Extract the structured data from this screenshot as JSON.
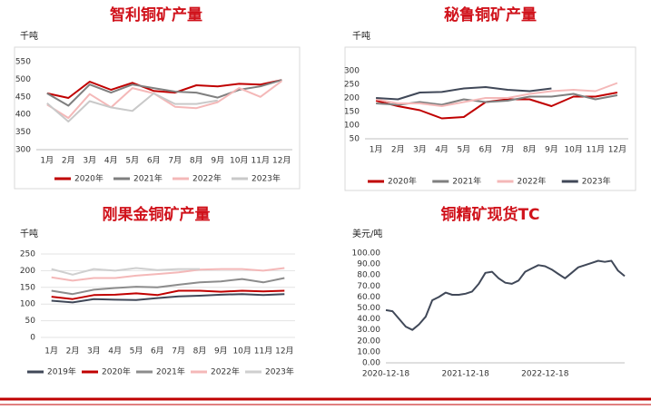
{
  "chart_data": [
    {
      "type": "line",
      "title": "智利铜矿产量",
      "ylabel": "千吨",
      "categories": [
        "1月",
        "2月",
        "3月",
        "4月",
        "5月",
        "6月",
        "7月",
        "8月",
        "9月",
        "10月",
        "11月",
        "12月"
      ],
      "ylim": [
        300,
        550
      ],
      "yticks": [
        300,
        350,
        400,
        450,
        500,
        550
      ],
      "grid": false,
      "series": [
        {
          "name": "2020年",
          "color": "#c00000",
          "values": [
            460,
            447,
            493,
            470,
            490,
            467,
            462,
            483,
            480,
            487,
            485,
            498
          ]
        },
        {
          "name": "2021年",
          "color": "#7f7f7f",
          "values": [
            460,
            425,
            485,
            462,
            485,
            475,
            465,
            462,
            448,
            470,
            480,
            498
          ]
        },
        {
          "name": "2022年",
          "color": "#f4b8b8",
          "values": [
            428,
            390,
            458,
            420,
            475,
            460,
            422,
            418,
            435,
            475,
            450,
            495
          ]
        },
        {
          "name": "2023年",
          "color": "#c9c9c9",
          "values": [
            432,
            380,
            438,
            420,
            410,
            460,
            430,
            430,
            440,
            null,
            null,
            null
          ]
        }
      ]
    },
    {
      "type": "line",
      "title": "秘鲁铜矿产量",
      "ylabel": "千吨",
      "categories": [
        "1月",
        "2月",
        "3月",
        "4月",
        "5月",
        "6月",
        "7月",
        "8月",
        "9月",
        "10月",
        "11月",
        "12月"
      ],
      "ylim": [
        50,
        300
      ],
      "yticks": [
        50,
        100,
        150,
        200,
        250,
        300
      ],
      "grid": false,
      "series": [
        {
          "name": "2020年",
          "color": "#c00000",
          "values": [
            190,
            170,
            155,
            125,
            130,
            185,
            195,
            195,
            170,
            205,
            205,
            220
          ]
        },
        {
          "name": "2021年",
          "color": "#7f7f7f",
          "values": [
            180,
            175,
            185,
            175,
            195,
            185,
            190,
            205,
            205,
            215,
            195,
            210
          ]
        },
        {
          "name": "2022年",
          "color": "#f4b8b8",
          "values": [
            195,
            180,
            180,
            170,
            185,
            200,
            200,
            215,
            225,
            230,
            225,
            255
          ]
        },
        {
          "name": "2023年",
          "color": "#404858",
          "values": [
            200,
            195,
            220,
            222,
            235,
            240,
            230,
            225,
            235,
            null,
            null,
            null
          ]
        }
      ]
    },
    {
      "type": "line",
      "title": "刚果金铜矿产量",
      "ylabel": "千吨",
      "categories": [
        "1月",
        "2月",
        "3月",
        "4月",
        "5月",
        "6月",
        "7月",
        "8月",
        "9月",
        "10月",
        "11月",
        "12月"
      ],
      "ylim": [
        0,
        250
      ],
      "yticks": [
        0,
        50,
        100,
        150,
        200,
        250
      ],
      "grid": true,
      "series": [
        {
          "name": "2019年",
          "color": "#404858",
          "values": [
            110,
            105,
            115,
            113,
            112,
            118,
            123,
            125,
            128,
            130,
            127,
            130
          ]
        },
        {
          "name": "2020年",
          "color": "#c00000",
          "values": [
            122,
            115,
            127,
            128,
            132,
            127,
            140,
            140,
            137,
            140,
            138,
            140
          ]
        },
        {
          "name": "2021年",
          "color": "#8c8c8c",
          "values": [
            140,
            130,
            143,
            148,
            152,
            150,
            158,
            165,
            168,
            175,
            165,
            178
          ]
        },
        {
          "name": "2022年",
          "color": "#f4b8b8",
          "values": [
            180,
            170,
            178,
            178,
            185,
            190,
            195,
            203,
            205,
            205,
            200,
            208
          ]
        },
        {
          "name": "2023年",
          "color": "#cfcfcf",
          "values": [
            205,
            188,
            205,
            200,
            208,
            202,
            205,
            205,
            null,
            null,
            null,
            null
          ]
        }
      ]
    },
    {
      "type": "line",
      "title": "铜精矿现货TC",
      "ylabel": "美元/吨",
      "categories": [
        "2020-12-18",
        null,
        null,
        null,
        null,
        null,
        null,
        null,
        null,
        null,
        null,
        null,
        "2021-12-18",
        null,
        null,
        null,
        null,
        null,
        null,
        null,
        null,
        null,
        null,
        null,
        "2022-12-18",
        null,
        null,
        null,
        null,
        null,
        null,
        null,
        null,
        null,
        null,
        null,
        null
      ],
      "ylim": [
        0,
        100
      ],
      "yticks": [
        {
          "value": 0,
          "label": "0.00"
        },
        {
          "value": 10,
          "label": "10.00"
        },
        {
          "value": 20,
          "label": "20.00"
        },
        {
          "value": 30,
          "label": "30.00"
        },
        {
          "value": 40,
          "label": "40.00"
        },
        {
          "value": 50,
          "label": "50.00"
        },
        {
          "value": 60,
          "label": "60.00"
        },
        {
          "value": 70,
          "label": "70.00"
        },
        {
          "value": 80,
          "label": "80.00"
        },
        {
          "value": 90,
          "label": "90.00"
        },
        {
          "value": 100,
          "label": "100.00"
        }
      ],
      "grid": false,
      "series": [
        {
          "color": "#404858",
          "values": [
            48,
            47,
            40,
            33,
            30,
            35,
            42,
            57,
            60,
            64,
            62,
            62,
            63,
            65,
            72,
            82,
            83,
            77,
            73,
            72,
            75,
            83,
            86,
            89,
            88,
            85,
            81,
            77,
            82,
            87,
            89,
            91,
            93,
            92,
            93,
            84,
            79
          ]
        }
      ]
    }
  ]
}
